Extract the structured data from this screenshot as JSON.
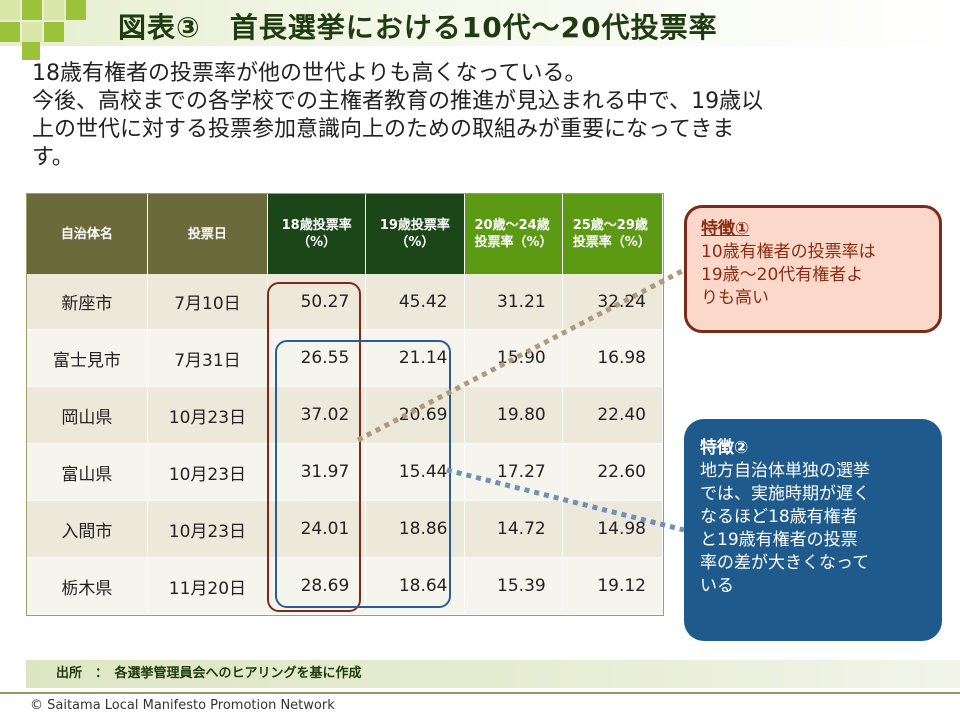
{
  "title": "図表③　首長選挙における10代～20代投票率",
  "lead": [
    "18歳有権者の投票率が他の世代よりも高くなっている。",
    "今後、高校までの各学校での主権者教育の推進が見込まれる中で、19歳以",
    "上の世代に対する投票参加意識向上のための取組みが重要になってきま",
    "す。"
  ],
  "table": {
    "headers": [
      "自治体名",
      "投票日",
      "18歳投票率（%）",
      "19歳投票率（%）",
      "20歳～24歳投票率（%）",
      "25歳～29歳投票率（%）"
    ],
    "rows": [
      [
        "新座市",
        "7月10日",
        "50.27",
        "45.42",
        "31.21",
        "32.24"
      ],
      [
        "富士見市",
        "7月31日",
        "26.55",
        "21.14",
        "15.90",
        "16.98"
      ],
      [
        "岡山県",
        "10月23日",
        "37.02",
        "20.69",
        "19.80",
        "22.40"
      ],
      [
        "富山県",
        "10月23日",
        "31.97",
        "15.44",
        "17.27",
        "22.60"
      ],
      [
        "入間市",
        "10月23日",
        "24.01",
        "18.86",
        "14.72",
        "14.98"
      ],
      [
        "栃木県",
        "11月20日",
        "28.69",
        "18.64",
        "15.39",
        "19.12"
      ]
    ]
  },
  "callout1": {
    "heading": "特徴①",
    "lines": [
      "10歳有権者の投票率は",
      "19歳～20代有権者よ",
      "りも高い"
    ]
  },
  "callout2": {
    "heading": "特徴②",
    "lines": [
      "地方自治体単独の選挙",
      "では、実施時期が遅く",
      "なるほど18歳有権者",
      "と19歳有権者の投票",
      "率の差が大きくなって",
      "いる"
    ]
  },
  "source": "出所　：　各選挙管理員会へのヒアリングを基に作成",
  "copyright": "© Saitama Local Manifesto Promotion Network",
  "colors": {
    "header_dark": "#6b6a3b",
    "header_highlight": "#1a4618",
    "header_green": "#5c9a13",
    "callout1_border": "#7a2c1a",
    "callout2_fill": "#1f5a8c"
  }
}
